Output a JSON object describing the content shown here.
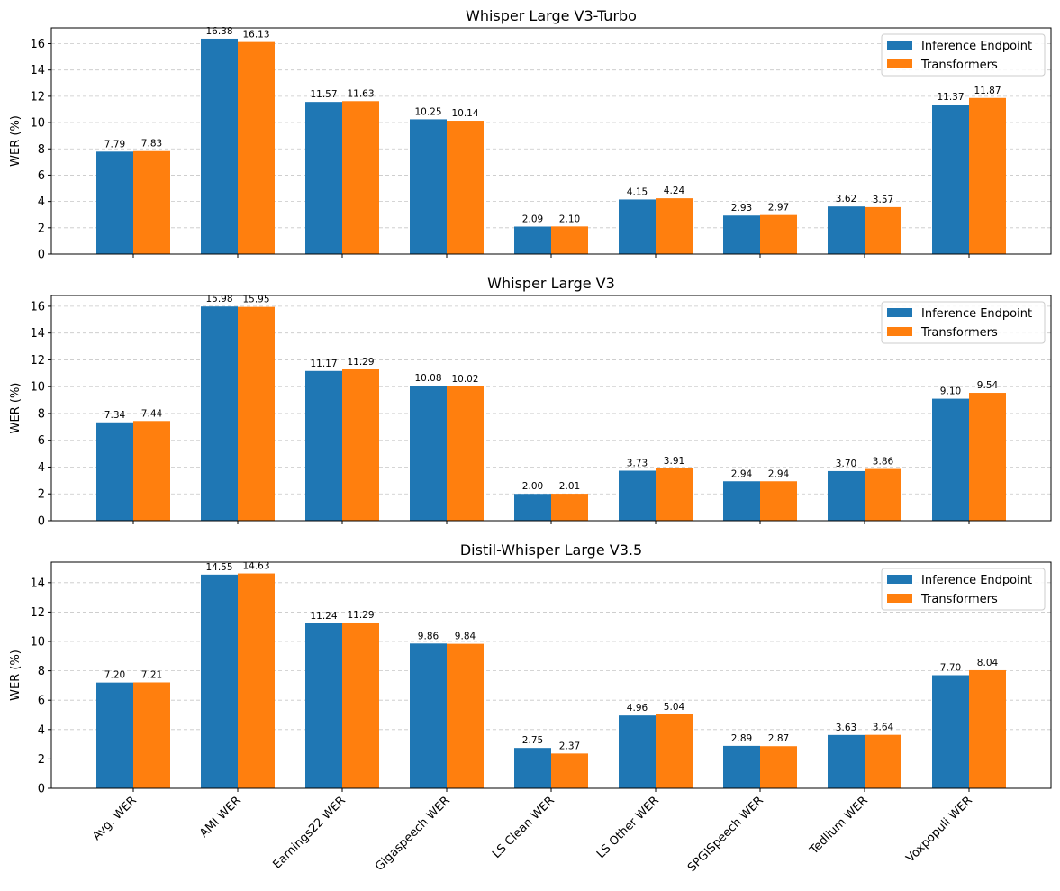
{
  "colors": {
    "Inference Endpoint": "#1f77b4",
    "Transformers": "#ff7f0e"
  },
  "chart_data": [
    {
      "type": "bar",
      "title": "Whisper Large V3-Turbo",
      "ylabel": "WER (%)",
      "xlabel": "",
      "ylim": [
        0,
        17.2
      ],
      "yticks": [
        0,
        2,
        4,
        6,
        8,
        10,
        12,
        14,
        16
      ],
      "grid": "y dashed",
      "legend": "top-right",
      "categories": [
        "Avg. WER",
        "AMI WER",
        "Earnings22 WER",
        "Gigaspeech WER",
        "LS Clean WER",
        "LS Other WER",
        "SPGISpeech WER",
        "Tedlium WER",
        "Voxpopuli WER"
      ],
      "series": [
        {
          "name": "Inference Endpoint",
          "values": [
            7.79,
            16.38,
            11.57,
            10.25,
            2.09,
            4.15,
            2.93,
            3.62,
            11.37
          ]
        },
        {
          "name": "Transformers",
          "values": [
            7.83,
            16.13,
            11.63,
            10.14,
            2.1,
            4.24,
            2.97,
            3.57,
            11.87
          ]
        }
      ]
    },
    {
      "type": "bar",
      "title": "Whisper Large V3",
      "ylabel": "WER (%)",
      "xlabel": "",
      "ylim": [
        0,
        16.8
      ],
      "yticks": [
        0,
        2,
        4,
        6,
        8,
        10,
        12,
        14,
        16
      ],
      "grid": "y dashed",
      "legend": "top-right",
      "categories": [
        "Avg. WER",
        "AMI WER",
        "Earnings22 WER",
        "Gigaspeech WER",
        "LS Clean WER",
        "LS Other WER",
        "SPGISpeech WER",
        "Tedlium WER",
        "Voxpopuli WER"
      ],
      "series": [
        {
          "name": "Inference Endpoint",
          "values": [
            7.34,
            15.98,
            11.17,
            10.08,
            2.0,
            3.73,
            2.94,
            3.7,
            9.1
          ]
        },
        {
          "name": "Transformers",
          "values": [
            7.44,
            15.95,
            11.29,
            10.02,
            2.01,
            3.91,
            2.94,
            3.86,
            9.54
          ]
        }
      ]
    },
    {
      "type": "bar",
      "title": "Distil-Whisper Large V3.5",
      "ylabel": "WER (%)",
      "xlabel": "",
      "ylim": [
        0,
        15.4
      ],
      "yticks": [
        0,
        2,
        4,
        6,
        8,
        10,
        12,
        14
      ],
      "grid": "y dashed",
      "legend": "top-right",
      "categories": [
        "Avg. WER",
        "AMI WER",
        "Earnings22 WER",
        "Gigaspeech WER",
        "LS Clean WER",
        "LS Other WER",
        "SPGISpeech WER",
        "Tedlium WER",
        "Voxpopuli WER"
      ],
      "series": [
        {
          "name": "Inference Endpoint",
          "values": [
            7.2,
            14.55,
            11.24,
            9.86,
            2.75,
            4.96,
            2.89,
            3.63,
            7.7
          ]
        },
        {
          "name": "Transformers",
          "values": [
            7.21,
            14.63,
            11.29,
            9.84,
            2.37,
            5.04,
            2.87,
            3.64,
            8.04
          ]
        }
      ]
    }
  ]
}
